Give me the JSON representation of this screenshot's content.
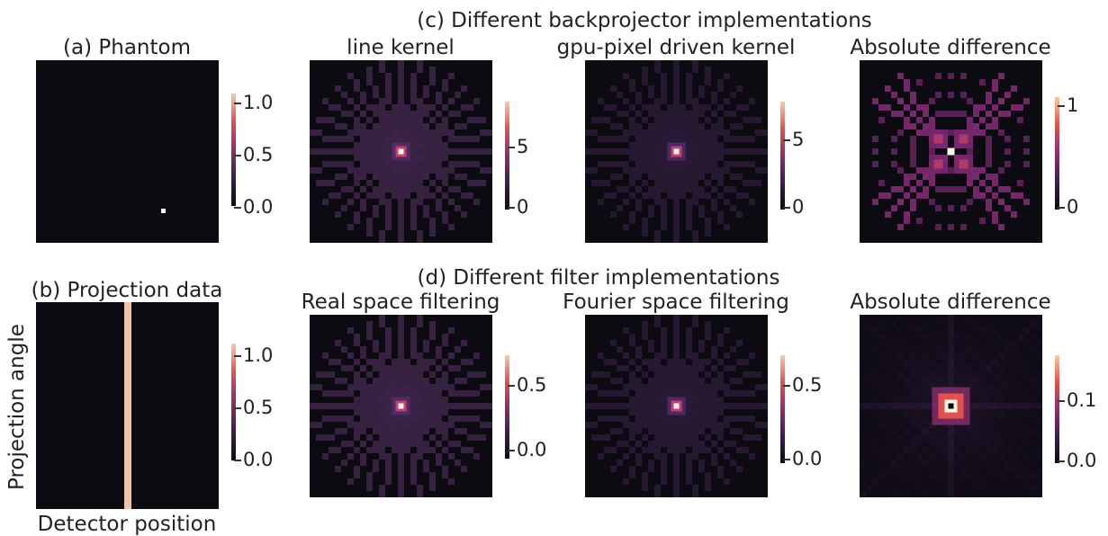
{
  "panels": {
    "phantom": {
      "title": "(a) Phantom",
      "ticks": [
        "1.0",
        "0.5",
        "0.0"
      ]
    },
    "projection": {
      "title": "(b) Projection data",
      "xlabel": "Detector position",
      "ylabel": "Projection angle",
      "ticks": [
        "1.0",
        "0.5",
        "0.0"
      ]
    },
    "backprojector": {
      "group_title": "(c) Different backprojector implementations",
      "line": {
        "title": "line kernel",
        "ticks": [
          "5",
          "0"
        ]
      },
      "gpu": {
        "title": "gpu-pixel driven kernel",
        "ticks": [
          "5",
          "0"
        ]
      },
      "diff": {
        "title": "Absolute difference",
        "ticks": [
          "1",
          "0"
        ]
      }
    },
    "filter": {
      "group_title": "(d) Different filter implementations",
      "real": {
        "title": "Real space filtering",
        "ticks": [
          "0.5",
          "0.0"
        ]
      },
      "fourier": {
        "title": "Fourier space filtering",
        "ticks": [
          "0.5",
          "0.0"
        ]
      },
      "diff": {
        "title": "Absolute difference",
        "ticks": [
          "0.1",
          "0.0"
        ]
      }
    }
  },
  "colors": {
    "background": "#0c0b12",
    "star": "#3b2446",
    "hot": "#fff7e8"
  }
}
